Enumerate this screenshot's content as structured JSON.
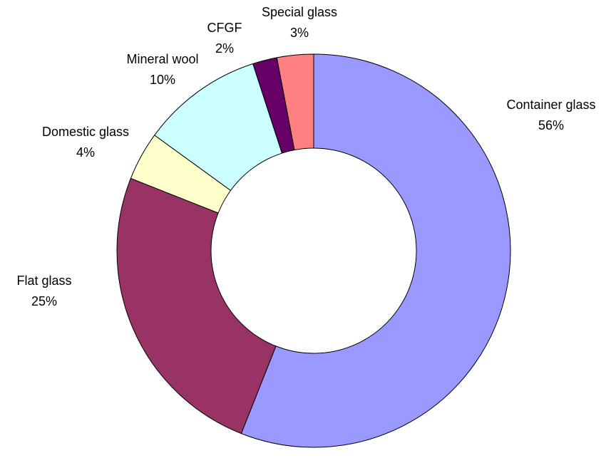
{
  "chart_data": {
    "type": "donut",
    "categories": [
      "Container glass",
      "Flat glass",
      "Domestic glass",
      "Mineral wool",
      "CFGF",
      "Special glass"
    ],
    "values": [
      56,
      25,
      4,
      10,
      2,
      3
    ],
    "value_labels": [
      "56%",
      "25%",
      "4%",
      "10%",
      "2%",
      "3%"
    ],
    "colors": [
      "#9999ff",
      "#993366",
      "#ffffcc",
      "#ccffff",
      "#660066",
      "#ff8080"
    ]
  }
}
